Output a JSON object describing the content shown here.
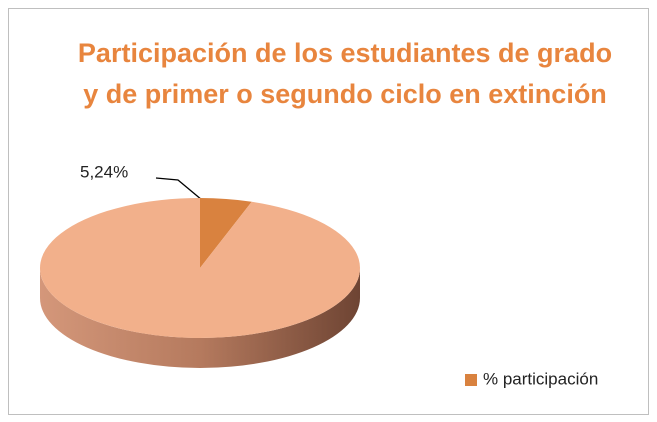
{
  "chart_data": {
    "type": "pie3d",
    "title": "Participación de los estudiantes de grado y de primer o segundo ciclo en extinción",
    "categories": [
      "% participación",
      null
    ],
    "values": [
      5.24,
      94.76
    ],
    "value_labels": [
      "5,24%",
      null
    ],
    "colors": [
      "#d9823f",
      "#f2b08b"
    ],
    "legend": "right"
  }
}
